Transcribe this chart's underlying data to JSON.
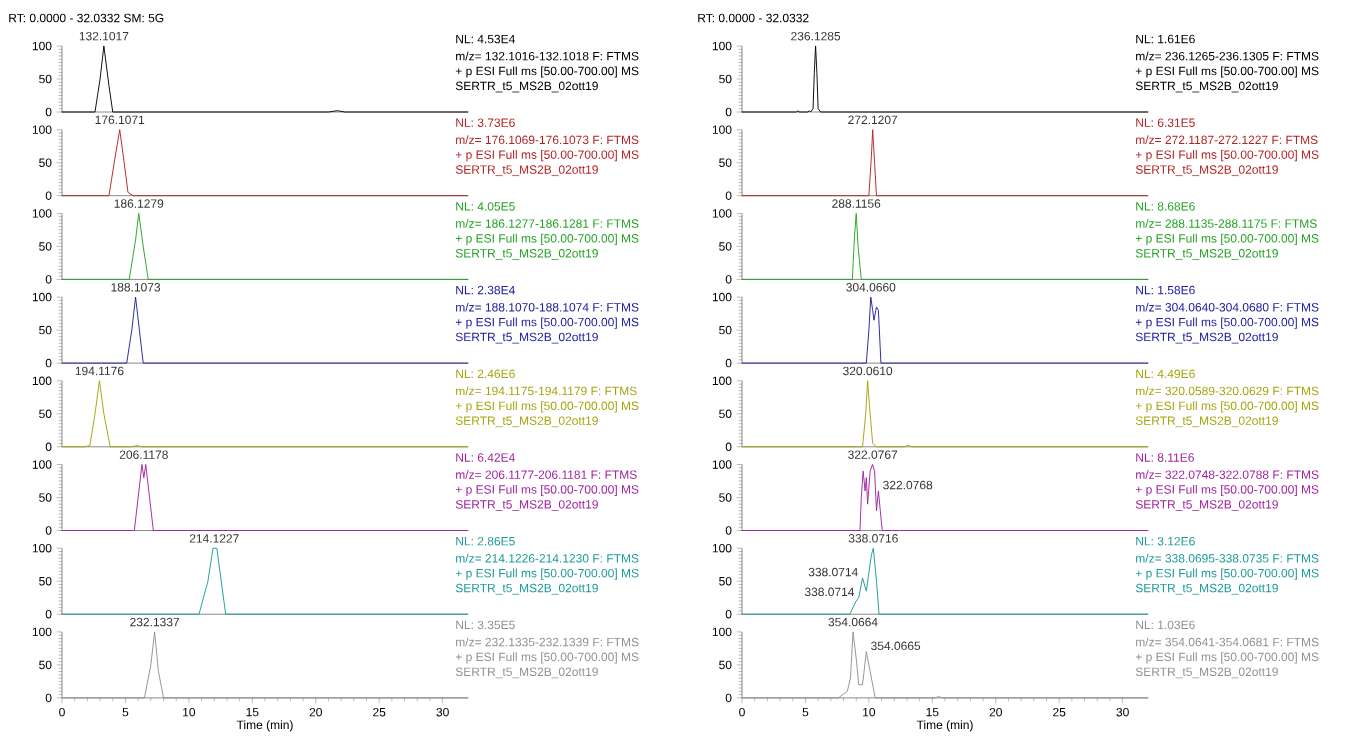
{
  "chart_data": [
    {
      "type": "line",
      "title": "RT: 0.0000 - 32.0332  SM: 5G",
      "tick_labels": "y",
      "xlim": [
        0,
        32
      ],
      "ylim": [
        0,
        100
      ],
      "yticks": [
        0,
        50,
        100
      ],
      "series": [
        {
          "color": "#000000",
          "x": [
            0,
            2.6,
            3.0,
            3.3,
            3.7,
            4.0,
            21.0,
            21.7,
            22.3,
            32
          ],
          "values": [
            0,
            0,
            50,
            100,
            40,
            0,
            0,
            2,
            0,
            0
          ]
        }
      ],
      "annotations": [
        {
          "text": "132.1017",
          "x": 3.3,
          "y": 100
        },
        "NL: 4.53E4",
        "m/z= 132.1016-132.1018 F: FTMS",
        "+ p ESI Full ms [50.00-700.00] MS",
        "SERTR_t5_MS2B_02ott19"
      ]
    },
    {
      "type": "line",
      "tick_labels": "y",
      "xlim": [
        0,
        32
      ],
      "ylim": [
        0,
        100
      ],
      "yticks": [
        0,
        50,
        100
      ],
      "series": [
        {
          "color": "#b22222",
          "x": [
            0,
            3.7,
            4.2,
            4.55,
            4.9,
            5.2,
            5.6,
            32
          ],
          "values": [
            0,
            0,
            60,
            100,
            50,
            5,
            0,
            0
          ]
        }
      ],
      "annotations": [
        {
          "text": "176.1071",
          "x": 4.55,
          "y": 100
        },
        "NL: 3.73E6",
        "m/z= 176.1069-176.1073 F: FTMS",
        "+ p ESI Full ms [50.00-700.00] MS",
        "SERTR_t5_MS2B_02ott19"
      ]
    },
    {
      "type": "line",
      "tick_labels": "y",
      "xlim": [
        0,
        32
      ],
      "ylim": [
        0,
        100
      ],
      "yticks": [
        0,
        50,
        100
      ],
      "series": [
        {
          "color": "#22a022",
          "x": [
            0,
            5.3,
            5.8,
            6.05,
            6.4,
            6.8,
            32
          ],
          "values": [
            0,
            0,
            60,
            100,
            50,
            0,
            0
          ]
        }
      ],
      "annotations": [
        {
          "text": "186.1279",
          "x": 6.05,
          "y": 100
        },
        "NL: 4.05E5",
        "m/z= 186.1277-186.1281 F: FTMS",
        "+ p ESI Full ms [50.00-700.00] MS",
        "SERTR_t5_MS2B_02ott19"
      ]
    },
    {
      "type": "line",
      "tick_labels": "y",
      "xlim": [
        0,
        32
      ],
      "ylim": [
        0,
        100
      ],
      "yticks": [
        0,
        50,
        100
      ],
      "series": [
        {
          "color": "#1f1f9f",
          "x": [
            0,
            5.1,
            5.5,
            5.8,
            6.1,
            6.4,
            32
          ],
          "values": [
            0,
            0,
            50,
            100,
            50,
            0,
            0
          ]
        }
      ],
      "annotations": [
        {
          "text": "188.1073",
          "x": 5.8,
          "y": 100
        },
        "NL: 2.38E4",
        "m/z= 188.1070-188.1074 F: FTMS",
        "+ p ESI Full ms [50.00-700.00] MS",
        "SERTR_t5_MS2B_02ott19"
      ]
    },
    {
      "type": "line",
      "tick_labels": "y",
      "xlim": [
        0,
        32
      ],
      "ylim": [
        0,
        100
      ],
      "yticks": [
        0,
        50,
        100
      ],
      "series": [
        {
          "color": "#a3a30a",
          "x": [
            0,
            1.8,
            2.2,
            2.6,
            2.95,
            3.3,
            3.8,
            5.5,
            5.9,
            6.3,
            32
          ],
          "values": [
            0,
            0,
            2,
            50,
            100,
            50,
            0,
            0,
            2,
            0,
            0
          ]
        }
      ],
      "annotations": [
        {
          "text": "194.1176",
          "x": 2.95,
          "y": 100
        },
        "NL: 2.46E6",
        "m/z= 194.1175-194.1179 F: FTMS",
        "+ p ESI Full ms [50.00-700.00] MS",
        "SERTR_t5_MS2B_02ott19"
      ]
    },
    {
      "type": "line",
      "tick_labels": "y",
      "xlim": [
        0,
        32
      ],
      "ylim": [
        0,
        100
      ],
      "yticks": [
        0,
        50,
        100
      ],
      "series": [
        {
          "color": "#a020a0",
          "x": [
            0,
            5.7,
            6.0,
            6.3,
            6.45,
            6.6,
            6.9,
            7.2,
            32
          ],
          "values": [
            0,
            0,
            50,
            100,
            80,
            100,
            50,
            0,
            0
          ]
        }
      ],
      "annotations": [
        {
          "text": "206.1178",
          "x": 6.45,
          "y": 100
        },
        "NL: 6.42E4",
        "m/z= 206.1177-206.1181 F: FTMS",
        "+ p ESI Full ms [50.00-700.00] MS",
        "SERTR_t5_MS2B_02ott19"
      ]
    },
    {
      "type": "line",
      "tick_labels": "y",
      "xlim": [
        0,
        32
      ],
      "ylim": [
        0,
        100
      ],
      "yticks": [
        0,
        50,
        100
      ],
      "series": [
        {
          "color": "#1a9999",
          "x": [
            0,
            10.8,
            11.5,
            11.9,
            12.2,
            12.9,
            32
          ],
          "values": [
            0,
            0,
            50,
            100,
            100,
            0,
            0
          ]
        }
      ],
      "annotations": [
        {
          "text": "214.1227",
          "x": 12.0,
          "y": 100
        },
        "NL: 2.86E5",
        "m/z= 214.1226-214.1230 F: FTMS",
        "+ p ESI Full ms [50.00-700.00] MS",
        "SERTR_t5_MS2B_02ott19"
      ]
    },
    {
      "type": "line",
      "xlabel": "Time (min)",
      "xlim": [
        0,
        32
      ],
      "ylim": [
        0,
        100
      ],
      "xticks": [
        0,
        5,
        10,
        15,
        20,
        25,
        30
      ],
      "yticks": [
        0,
        50,
        100
      ],
      "series": [
        {
          "color": "#909090",
          "x": [
            0,
            6.5,
            7.0,
            7.3,
            7.6,
            8.0,
            32
          ],
          "values": [
            0,
            0,
            50,
            100,
            40,
            0,
            0
          ]
        }
      ],
      "annotations": [
        {
          "text": "232.1337",
          "x": 7.3,
          "y": 100
        },
        "NL: 3.35E5",
        "m/z= 232.1335-232.1339 F: FTMS",
        "+ p ESI Full ms [50.00-700.00] MS",
        "SERTR_t5_MS2B_02ott19"
      ]
    },
    {
      "type": "line",
      "title": "RT: 0.0000 - 32.0332",
      "tick_labels": "y",
      "xlim": [
        0,
        32
      ],
      "ylim": [
        0,
        100
      ],
      "yticks": [
        0,
        50,
        100
      ],
      "series": [
        {
          "color": "#000000",
          "x": [
            0,
            4.3,
            4.4,
            4.5,
            5.2,
            5.3,
            5.4,
            5.6,
            5.7,
            5.8,
            5.9,
            6.0,
            6.2,
            32
          ],
          "values": [
            0,
            0,
            2,
            0,
            0,
            2,
            0,
            5,
            60,
            100,
            60,
            5,
            0,
            0
          ]
        }
      ],
      "annotations": [
        {
          "text": "236.1285",
          "x": 5.8,
          "y": 100
        },
        "NL: 1.61E6",
        "m/z= 236.1265-236.1305 F: FTMS",
        "+ p ESI Full ms [50.00-700.00] MS",
        "SERTR_t5_MS2B_02ott19"
      ]
    },
    {
      "type": "line",
      "tick_labels": "y",
      "xlim": [
        0,
        32
      ],
      "ylim": [
        0,
        100
      ],
      "yticks": [
        0,
        50,
        100
      ],
      "series": [
        {
          "color": "#b22222",
          "x": [
            0,
            10.0,
            10.2,
            10.3,
            10.45,
            10.6,
            32
          ],
          "values": [
            0,
            0,
            60,
            100,
            50,
            0,
            0
          ]
        }
      ],
      "annotations": [
        {
          "text": "272.1207",
          "x": 10.3,
          "y": 100
        },
        "NL: 6.31E5",
        "m/z= 272.1187-272.1227 F: FTMS",
        "+ p ESI Full ms [50.00-700.00] MS",
        "SERTR_t5_MS2B_02ott19"
      ]
    },
    {
      "type": "line",
      "tick_labels": "y",
      "xlim": [
        0,
        32
      ],
      "ylim": [
        0,
        100
      ],
      "yticks": [
        0,
        50,
        100
      ],
      "series": [
        {
          "color": "#22a022",
          "x": [
            0,
            8.7,
            8.85,
            9.0,
            9.15,
            9.4,
            32
          ],
          "values": [
            0,
            0,
            60,
            100,
            50,
            0,
            0
          ]
        }
      ],
      "annotations": [
        {
          "text": "288.1156",
          "x": 9.0,
          "y": 100
        },
        "NL: 8.68E6",
        "m/z= 288.1135-288.1175 F: FTMS",
        "+ p ESI Full ms [50.00-700.00] MS",
        "SERTR_t5_MS2B_02ott19"
      ]
    },
    {
      "type": "line",
      "tick_labels": "y",
      "xlim": [
        0,
        32
      ],
      "ylim": [
        0,
        100
      ],
      "yticks": [
        0,
        50,
        100
      ],
      "series": [
        {
          "color": "#1f1f9f",
          "x": [
            0,
            9.6,
            9.8,
            10.0,
            10.15,
            10.3,
            10.4,
            10.6,
            10.75,
            10.95,
            11.4,
            32
          ],
          "values": [
            0,
            0,
            0,
            50,
            100,
            80,
            65,
            85,
            80,
            0,
            0,
            0
          ]
        }
      ],
      "annotations": [
        {
          "text": "304.0660",
          "x": 10.15,
          "y": 100
        },
        "NL: 1.58E6",
        "m/z= 304.0640-304.0680 F: FTMS",
        "+ p ESI Full ms [50.00-700.00] MS",
        "SERTR_t5_MS2B_02ott19"
      ]
    },
    {
      "type": "line",
      "tick_labels": "y",
      "xlim": [
        0,
        32
      ],
      "ylim": [
        0,
        100
      ],
      "yticks": [
        0,
        50,
        100
      ],
      "series": [
        {
          "color": "#a3a30a",
          "x": [
            0,
            9.5,
            9.75,
            9.9,
            10.1,
            10.3,
            10.6,
            12.8,
            13.1,
            13.4,
            32
          ],
          "values": [
            0,
            0,
            50,
            100,
            50,
            5,
            0,
            0,
            2,
            0,
            0
          ]
        }
      ],
      "annotations": [
        {
          "text": "320.0610",
          "x": 9.9,
          "y": 100
        },
        "NL: 4.49E6",
        "m/z= 320.0589-320.0629 F: FTMS",
        "+ p ESI Full ms [50.00-700.00] MS",
        "SERTR_t5_MS2B_02ott19"
      ]
    },
    {
      "type": "line",
      "tick_labels": "y",
      "xlim": [
        0,
        32
      ],
      "ylim": [
        0,
        100
      ],
      "yticks": [
        0,
        50,
        100
      ],
      "series": [
        {
          "color": "#a020a0",
          "x": [
            0,
            9.3,
            9.4,
            9.55,
            9.7,
            9.8,
            9.9,
            10.1,
            10.3,
            10.45,
            10.6,
            10.75,
            10.9,
            11.05,
            32
          ],
          "values": [
            0,
            0,
            50,
            90,
            60,
            80,
            40,
            90,
            100,
            90,
            30,
            60,
            30,
            0,
            0
          ]
        }
      ],
      "annotations": [
        {
          "text": "322.0767",
          "x": 10.3,
          "y": 100
        },
        {
          "text": "322.0768",
          "x": 10.75,
          "y": 60
        },
        "NL: 8.11E6",
        "m/z= 322.0748-322.0788 F: FTMS",
        "+ p ESI Full ms [50.00-700.00] MS",
        "SERTR_t5_MS2B_02ott19"
      ]
    },
    {
      "type": "line",
      "tick_labels": "y",
      "xlim": [
        0,
        32
      ],
      "ylim": [
        0,
        100
      ],
      "yticks": [
        0,
        50,
        100
      ],
      "series": [
        {
          "color": "#1a9999",
          "x": [
            0,
            8.5,
            9.0,
            9.2,
            9.5,
            9.8,
            10.2,
            10.35,
            10.6,
            10.8,
            32
          ],
          "values": [
            0,
            0,
            20,
            25,
            55,
            35,
            90,
            100,
            50,
            0,
            0
          ]
        }
      ],
      "annotations": [
        {
          "text": "338.0716",
          "x": 10.35,
          "y": 100
        },
        {
          "text": "338.0714",
          "x": 9.5,
          "y": 55
        },
        {
          "text": "338.0714",
          "x": 9.2,
          "y": 25
        },
        "NL: 3.12E6",
        "m/z= 338.0695-338.0735 F: FTMS",
        "+ p ESI Full ms [50.00-700.00] MS",
        "SERTR_t5_MS2B_02ott19"
      ]
    },
    {
      "type": "line",
      "xlabel": "Time (min)",
      "xlim": [
        0,
        32
      ],
      "ylim": [
        0,
        100
      ],
      "xticks": [
        0,
        5,
        10,
        15,
        20,
        25,
        30
      ],
      "yticks": [
        0,
        50,
        100
      ],
      "series": [
        {
          "color": "#909090",
          "x": [
            0,
            7.6,
            8.3,
            8.55,
            8.75,
            9.0,
            9.2,
            9.5,
            9.8,
            10.1,
            10.5,
            15.2,
            15.5,
            15.8,
            32
          ],
          "values": [
            0,
            0,
            10,
            30,
            100,
            60,
            20,
            20,
            70,
            40,
            0,
            0,
            2,
            0,
            0
          ]
        }
      ],
      "annotations": [
        {
          "text": "354.0664",
          "x": 8.75,
          "y": 100
        },
        {
          "text": "354.0665",
          "x": 9.8,
          "y": 70
        },
        "NL: 1.03E6",
        "m/z= 354.0641-354.0681 F: FTMS",
        "+ p ESI Full ms [50.00-700.00] MS",
        "SERTR_t5_MS2B_02ott19"
      ]
    }
  ]
}
